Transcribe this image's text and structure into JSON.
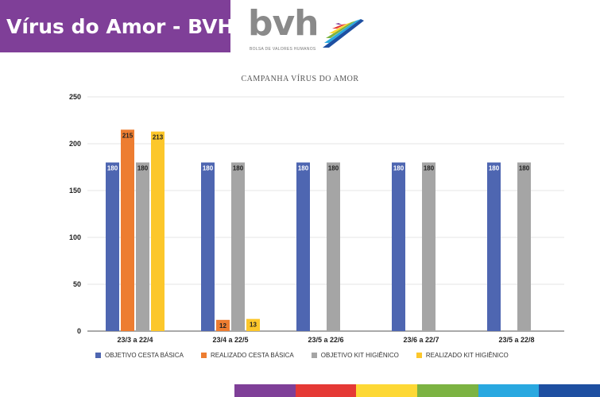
{
  "banner": {
    "title": "Vírus do Amor - BVH",
    "bg": "#7f3f98"
  },
  "logo": {
    "text": "bvh",
    "subtitle": "BOLSA DE VALORES HUMANOS"
  },
  "chart_data": {
    "type": "bar",
    "title": "CAMPANHA VÍRUS DO AMOR",
    "categories": [
      "23/3 a 22/4",
      "23/4 a 22/5",
      "23/5 a 22/6",
      "23/6 a 22/7",
      "23/5 a 22/8"
    ],
    "ylim": [
      0,
      250
    ],
    "yticks": [
      0,
      50,
      100,
      150,
      200,
      250
    ],
    "grid": true,
    "legend_position": "bottom",
    "series": [
      {
        "name": "OBJETIVO CESTA BÁSICA",
        "color": "#4e66b1",
        "values": [
          180,
          180,
          180,
          180,
          180
        ]
      },
      {
        "name": "REALIZADO CESTA BÁSICA",
        "color": "#ed7d31",
        "values": [
          215,
          12,
          null,
          null,
          null
        ]
      },
      {
        "name": "OBJETIVO KIT HIGIÊNICO",
        "color": "#a5a5a5",
        "values": [
          180,
          180,
          180,
          180,
          180
        ]
      },
      {
        "name": "REALIZADO KIT HIGIÊNICO",
        "color": "#fcc72b",
        "values": [
          213,
          13,
          null,
          null,
          null
        ]
      }
    ]
  },
  "footer_colors": [
    "#7f3f98",
    "#e53935",
    "#fdd835",
    "#7cb342",
    "#29a8e0",
    "#1e4fa1"
  ]
}
